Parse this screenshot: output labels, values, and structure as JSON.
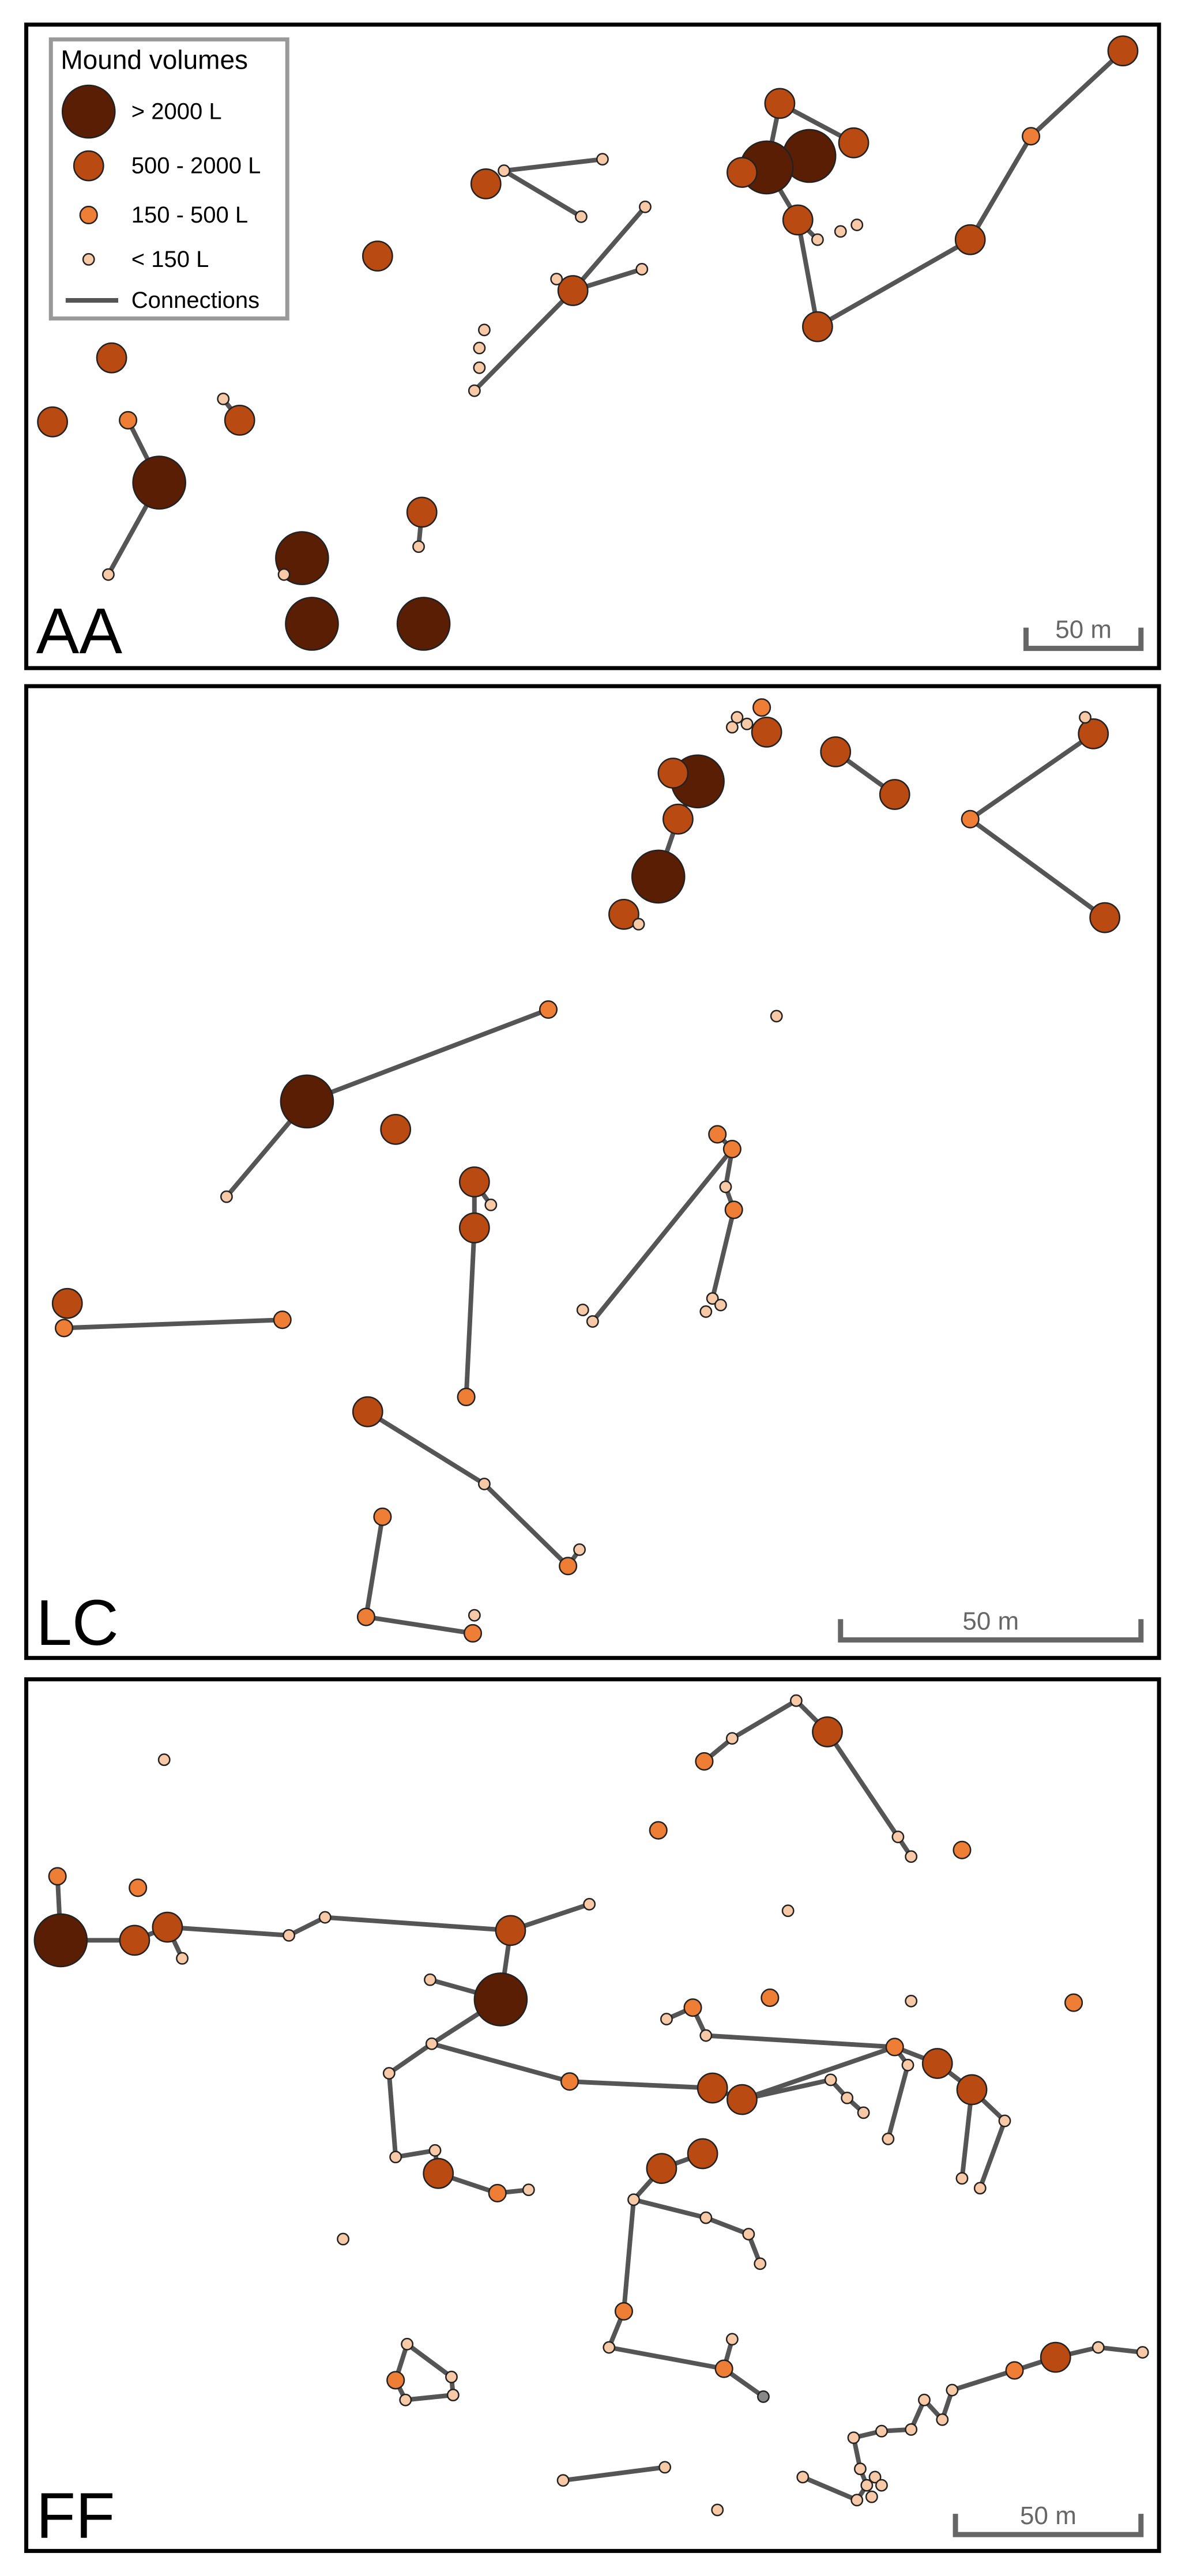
{
  "legend": {
    "title": "Mound volumes",
    "items": [
      {
        "label": "> 2000 L",
        "class": "xl"
      },
      {
        "label": "500 - 2000 L",
        "class": "l"
      },
      {
        "label": "150 - 500 L",
        "class": "m"
      },
      {
        "label": "< 150 L",
        "class": "s"
      },
      {
        "label": "Connections",
        "class": "line"
      }
    ]
  },
  "colors": {
    "xl": "#5a1e05",
    "l": "#b84a12",
    "m": "#ee7d35",
    "s": "#f8c9a6",
    "gray": "#888888",
    "connection": "#555555",
    "scalebar": "#666666",
    "frame": "#000000"
  },
  "panels": [
    {
      "id": "AA",
      "label": "AA",
      "scale_label": "50 m"
    },
    {
      "id": "LC",
      "label": "LC",
      "scale_label": "50 m"
    },
    {
      "id": "FF",
      "label": "FF",
      "scale_label": "50 m"
    }
  ]
}
